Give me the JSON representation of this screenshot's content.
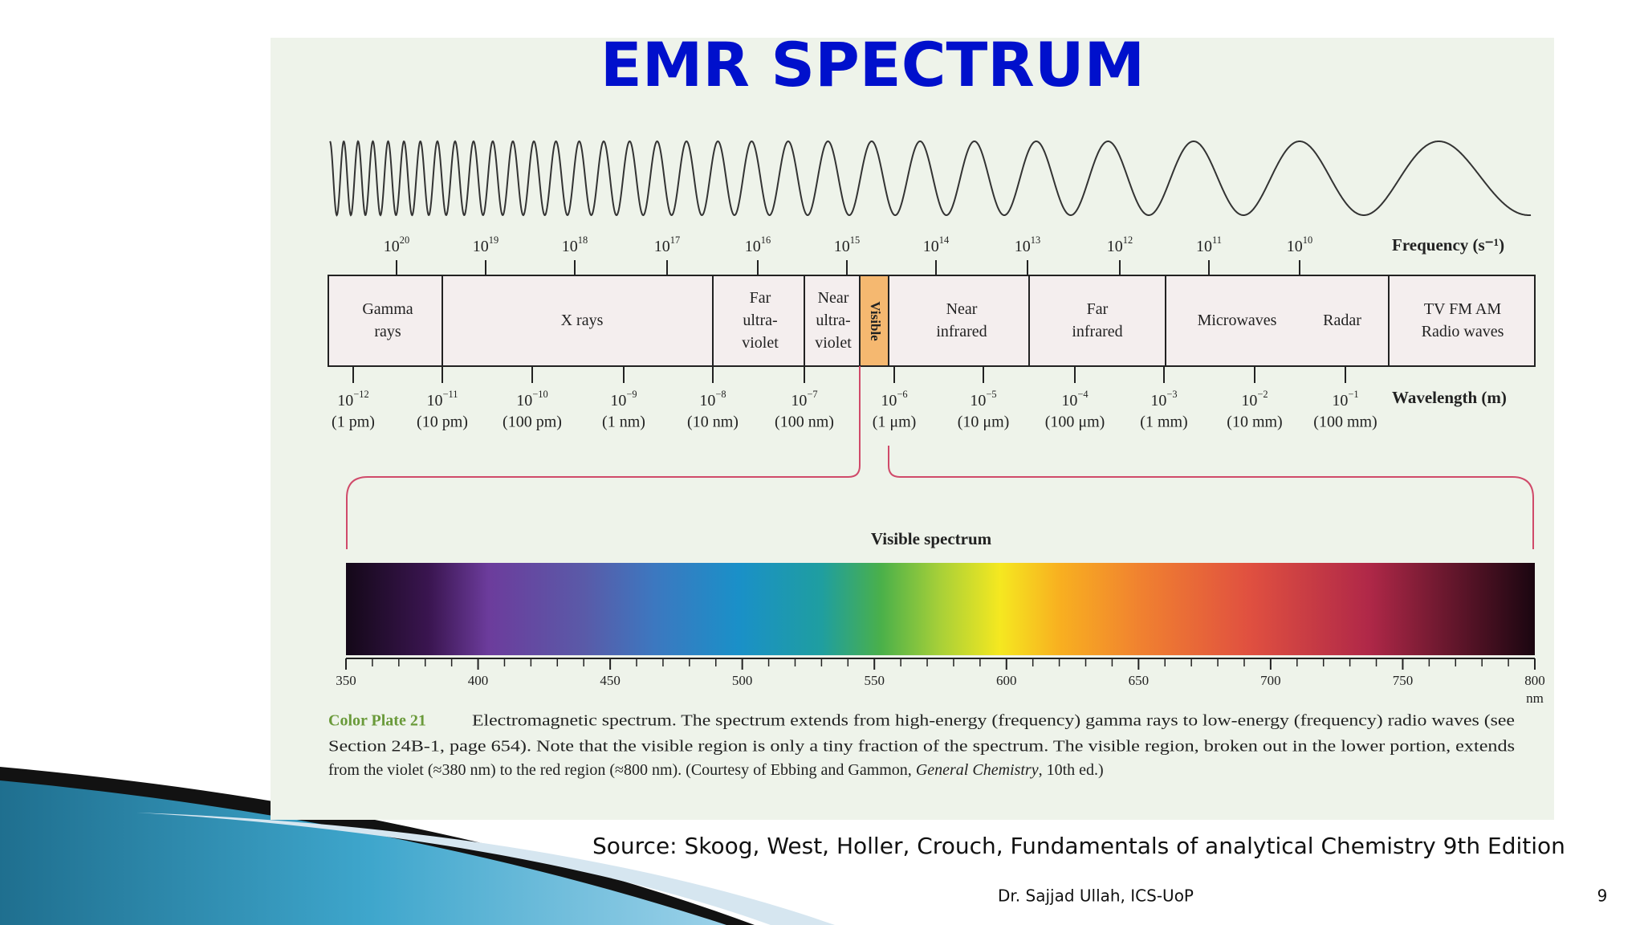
{
  "title": "EMR SPECTRUM",
  "diagram": {
    "frequency_label": "Frequency (s⁻¹)",
    "frequency_ticks": [
      {
        "base": "10",
        "exp": "20"
      },
      {
        "base": "10",
        "exp": "19"
      },
      {
        "base": "10",
        "exp": "18"
      },
      {
        "base": "10",
        "exp": "17"
      },
      {
        "base": "10",
        "exp": "16"
      },
      {
        "base": "10",
        "exp": "15"
      },
      {
        "base": "10",
        "exp": "14"
      },
      {
        "base": "10",
        "exp": "13"
      },
      {
        "base": "10",
        "exp": "12"
      },
      {
        "base": "10",
        "exp": "11"
      },
      {
        "base": "10",
        "exp": "10"
      }
    ],
    "regions": [
      {
        "lines": [
          "Gamma",
          "rays"
        ]
      },
      {
        "lines": [
          "X rays"
        ]
      },
      {
        "lines": [
          "Far",
          "ultra-",
          "violet"
        ]
      },
      {
        "lines": [
          "Near",
          "ultra-",
          "violet"
        ]
      },
      {
        "lines": [
          "Visible"
        ]
      },
      {
        "lines": [
          "Near",
          "infrared"
        ]
      },
      {
        "lines": [
          "Far",
          "infrared"
        ]
      },
      {
        "lines": [
          "Microwaves"
        ]
      },
      {
        "lines": [
          "Radar"
        ]
      },
      {
        "lines": [
          "TV FM AM",
          "Radio waves"
        ]
      }
    ],
    "wavelength_label": "Wavelength (m)",
    "wavelength_ticks": [
      {
        "base": "10",
        "exp": "−12",
        "sub": "(1 pm)"
      },
      {
        "base": "10",
        "exp": "−11",
        "sub": "(10 pm)"
      },
      {
        "base": "10",
        "exp": "−10",
        "sub": "(100 pm)"
      },
      {
        "base": "10",
        "exp": "−9",
        "sub": "(1 nm)"
      },
      {
        "base": "10",
        "exp": "−8",
        "sub": "(10 nm)"
      },
      {
        "base": "10",
        "exp": "−7",
        "sub": "(100 nm)"
      },
      {
        "base": "10",
        "exp": "−6",
        "sub": "(1 μm)"
      },
      {
        "base": "10",
        "exp": "−5",
        "sub": "(10 μm)"
      },
      {
        "base": "10",
        "exp": "−4",
        "sub": "(100 μm)"
      },
      {
        "base": "10",
        "exp": "−3",
        "sub": "(1 mm)"
      },
      {
        "base": "10",
        "exp": "−2",
        "sub": "(10 mm)"
      },
      {
        "base": "10",
        "exp": "−1",
        "sub": "(100 mm)"
      }
    ],
    "visible_title": "Visible spectrum",
    "spectrum_ticks": [
      350,
      400,
      450,
      500,
      550,
      600,
      650,
      700,
      750,
      800
    ],
    "spectrum_unit": "nm"
  },
  "caption": {
    "label": "Color Plate 21",
    "lines": [
      "Electromagnetic spectrum. The spectrum extends from high-energy (frequency) gamma rays to low-energy (frequency) radio waves (see",
      "Section 24B-1, page 654). Note that the visible region is only a tiny fraction of the spectrum. The visible region, broken out in the lower portion, extends"
    ],
    "last_line": [
      "from the violet (≈380 nm) to the red region (≈800 nm). (Courtesy of Ebbing and Gammon, ",
      "General Chemistry",
      ", 10th ed.)"
    ]
  },
  "source": "Source: Skoog, West, Holler, Crouch, Fundamentals of analytical Chemistry 9th Edition",
  "footer": {
    "author": "Dr. Sajjad Ullah, ICS-UoP",
    "page": "9"
  }
}
